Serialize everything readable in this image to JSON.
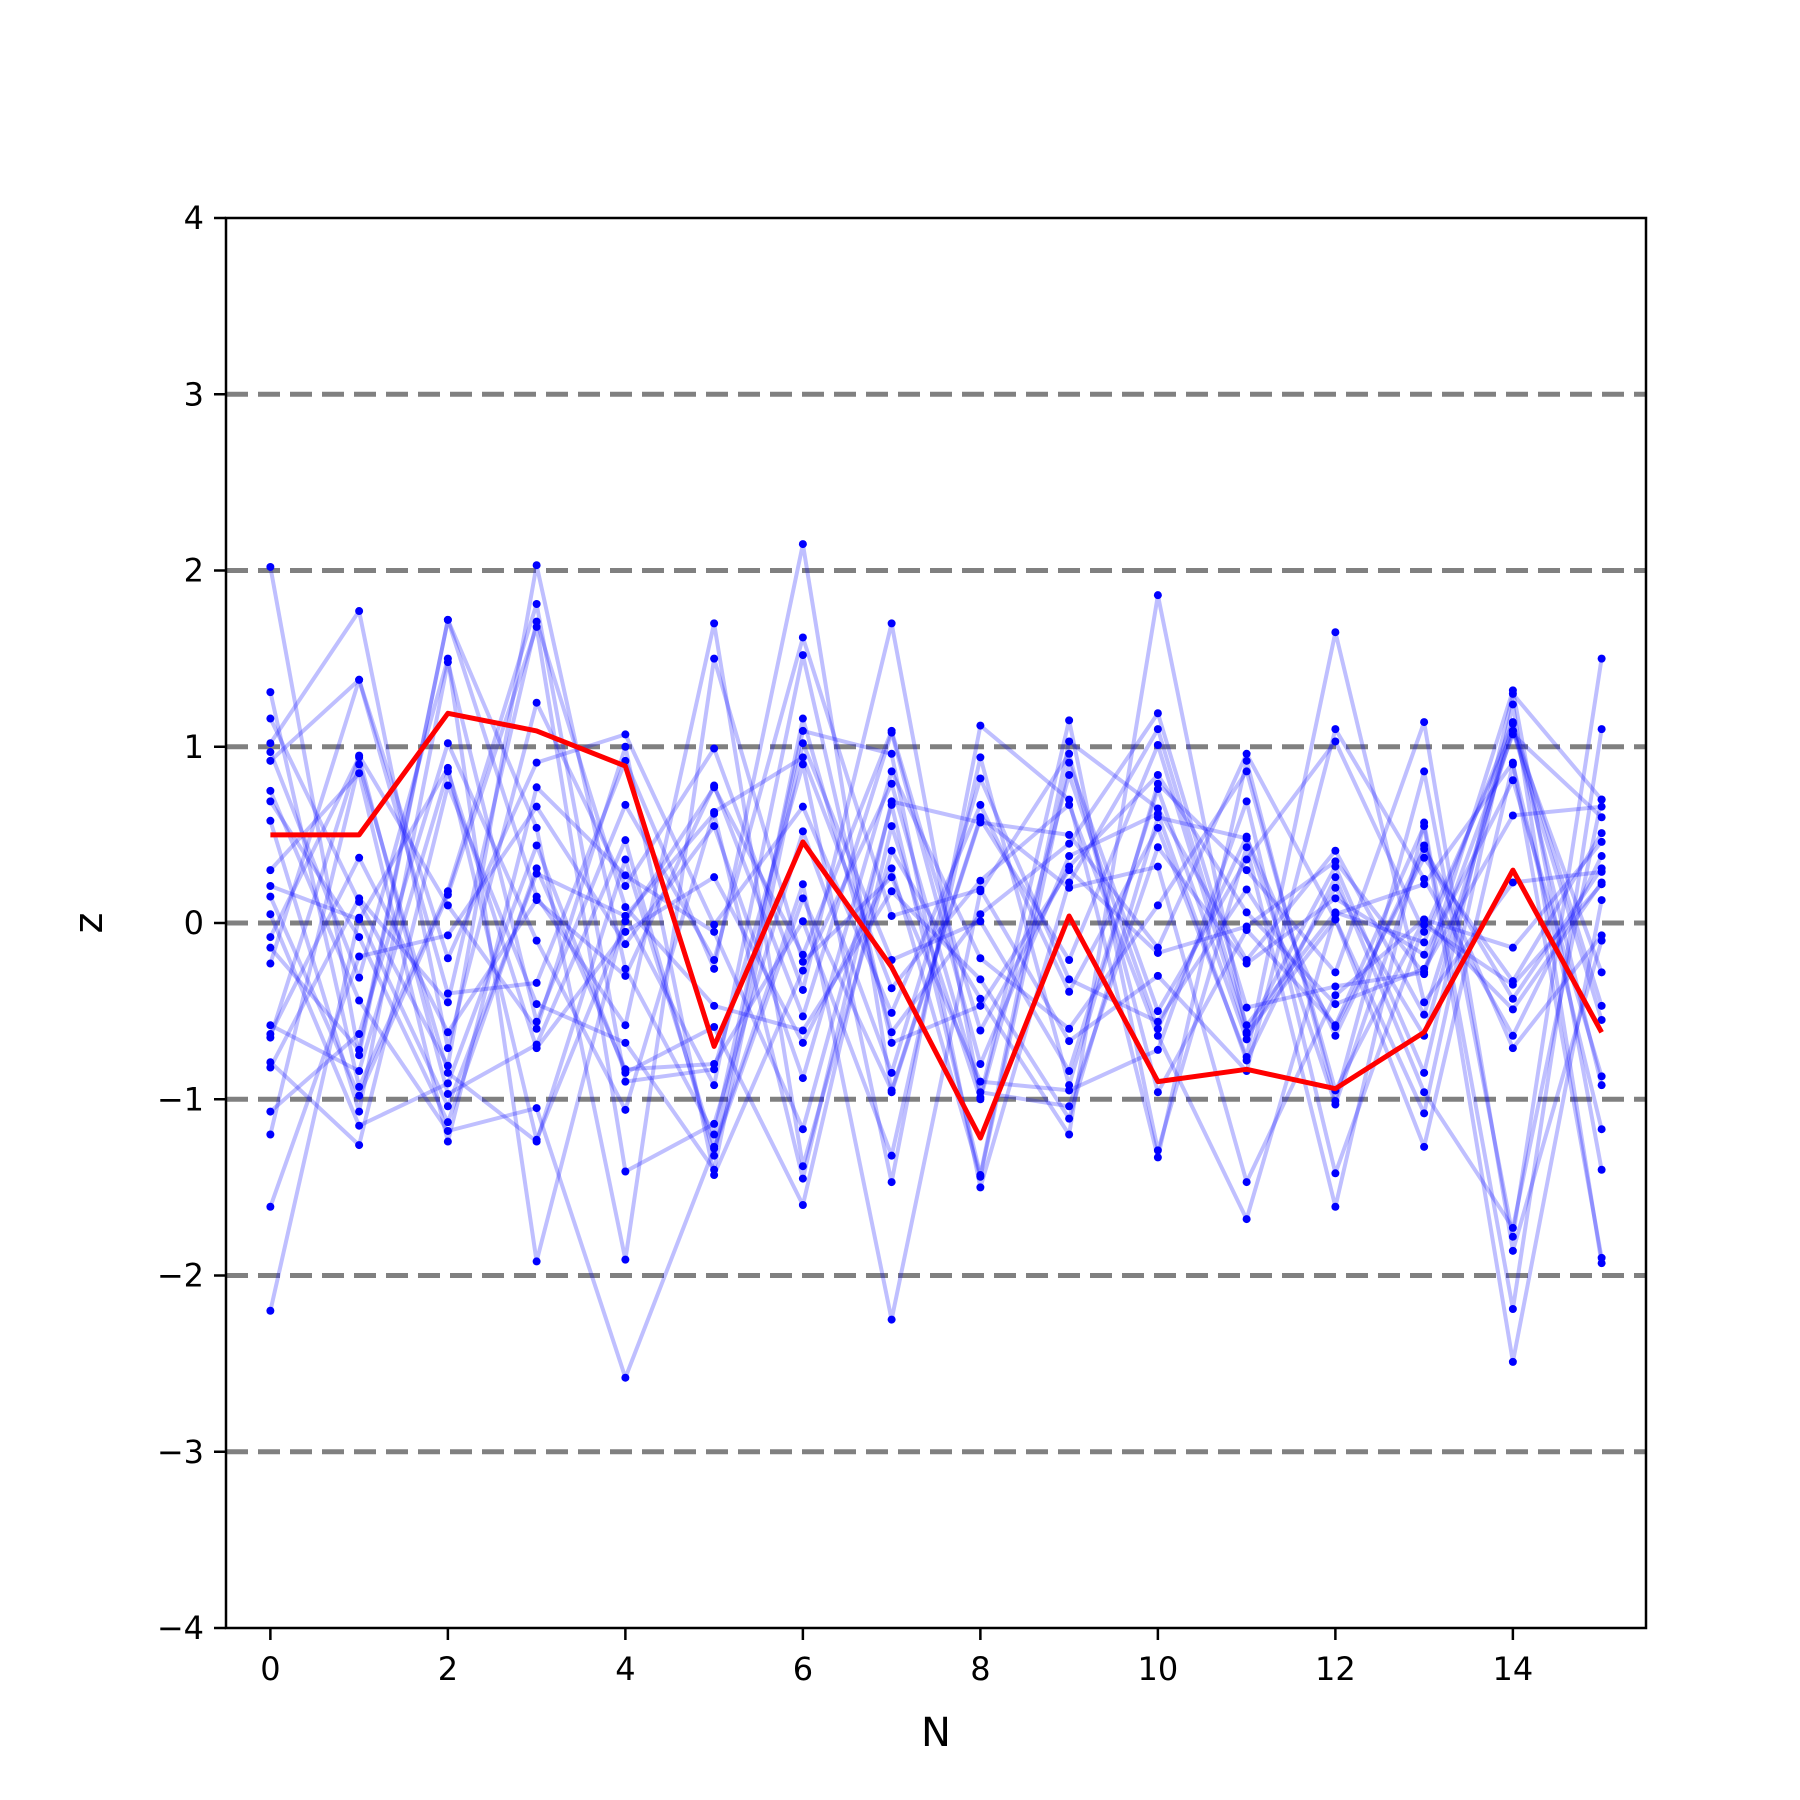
{
  "chart_data": {
    "type": "line",
    "xlabel": "N",
    "ylabel": "z",
    "xlim": [
      -0.5,
      15.5
    ],
    "ylim": [
      -4,
      4
    ],
    "x_ticks": [
      0,
      2,
      4,
      6,
      8,
      10,
      12,
      14
    ],
    "x_tick_labels": [
      "0",
      "2",
      "4",
      "6",
      "8",
      "10",
      "12",
      "14"
    ],
    "y_ticks": [
      -4,
      -3,
      -2,
      -1,
      0,
      1,
      2,
      3,
      4
    ],
    "y_tick_labels": [
      "−4",
      "−3",
      "−2",
      "−1",
      "0",
      "1",
      "2",
      "3",
      "4"
    ],
    "reference_lines": [
      -3,
      -2,
      -1,
      0,
      1,
      2,
      3
    ],
    "reference_line_color": "#808080",
    "trace_color": "#0000ff",
    "highlight_color": "#ff0000",
    "x": [
      0,
      1,
      2,
      3,
      4,
      5,
      6,
      7,
      8,
      9,
      10,
      11,
      12,
      13,
      14,
      15
    ],
    "highlight_series": {
      "values": [
        0.5,
        0.5,
        1.19,
        1.09,
        0.89,
        -0.7,
        0.46,
        -0.25,
        -1.22,
        0.04,
        -0.9,
        -0.83,
        -0.94,
        -0.62,
        0.3,
        -0.62
      ]
    },
    "traces": [
      [
        2.02,
        -0.75,
        1.72,
        0.15,
        -0.58,
        1.7,
        -1.38,
        0.41,
        -0.43,
        -1.2,
        1.86,
        -0.62,
        0.32,
        -0.85,
        1.3,
        0.7
      ],
      [
        1.31,
        -0.93,
        0.18,
        1.81,
        -0.9,
        -0.83,
        0.9,
        -1.47,
        1.12,
        0.7,
        -1.33,
        0.92,
        -1.01,
        0.86,
        -1.78,
        1.5
      ],
      [
        1.16,
        0.12,
        -0.81,
        2.03,
        -0.26,
        -1.2,
        1.09,
        0.96,
        -1.5,
        0.23,
        1.1,
        -0.58,
        0.06,
        -0.11,
        1.14,
        -0.47
      ],
      [
        1.02,
        1.77,
        -0.71,
        1.25,
        0.21,
        0.99,
        -0.38,
        1.7,
        -0.99,
        1.15,
        -1.29,
        0.43,
        -1.61,
        0.57,
        -2.19,
        1.1
      ],
      [
        0.97,
        -0.31,
        1.5,
        -1.92,
        0.04,
        0.62,
        -1.45,
        0.69,
        0.57,
        0.5,
        -0.14,
        0.96,
        0.02,
        -1.08,
        1.24,
        -1.93
      ],
      [
        0.92,
        1.38,
        -0.2,
        0.91,
        1.07,
        -0.01,
        0.66,
        -0.51,
        0.67,
        -0.39,
        0.54,
        -0.76,
        1.65,
        -0.45,
        0.23,
        0.29
      ],
      [
        0.69,
        -0.08,
        -1.13,
        0.31,
        -0.83,
        -0.8,
        0.01,
        -1.32,
        0.94,
        -0.92,
        0.79,
        0.3,
        -0.28,
        1.14,
        -1.86,
        -0.1
      ],
      [
        0.58,
        -1.07,
        1.48,
        -0.56,
        0.67,
        -0.21,
        1.62,
        0.04,
        0.19,
        -0.67,
        -0.3,
        -0.84,
        1.1,
        0.25,
        -0.64,
        0.38
      ],
      [
        0.3,
        0.85,
        -1.24,
        0.77,
        0.27,
        -0.05,
        -1.17,
        0.67,
        -1.43,
        1.03,
        0.65,
        -0.21,
        0.41,
        -0.52,
        1.09,
        -0.28
      ],
      [
        0.21,
        0.02,
        0.88,
        -1.23,
        0.01,
        0.77,
        -0.18,
        1.09,
        -0.61,
        0.32,
        0.84,
        0.06,
        -0.46,
        -0.26,
        0.61,
        0.66
      ],
      [
        0.15,
        -0.98,
        0.16,
        1.68,
        -1.41,
        -1.14,
        0.52,
        -0.85,
        0.82,
        -0.32,
        -0.56,
        0.19,
        -0.59,
        0.37,
        -0.33,
        0.51
      ],
      [
        -0.08,
        0.94,
        -0.97,
        -0.69,
        0.47,
        -1.32,
        1.16,
        -0.62,
        0.05,
        0.45,
        1.19,
        -0.48,
        -0.36,
        -0.28,
        1.32,
        -1.4
      ],
      [
        -0.14,
        -0.72,
        1.72,
        0.54,
        -1.91,
        1.5,
        -0.22,
        0.26,
        -0.9,
        -0.95,
        -0.72,
        0.69,
        -1.42,
        -0.01,
        -0.35,
        0.22
      ],
      [
        -0.23,
        1.38,
        -0.4,
        -0.34,
        0.92,
        -0.26,
        2.15,
        -0.96,
        0.59,
        -0.21,
        1.01,
        -0.63,
        0.02,
        -1.27,
        0.9,
        -1.17
      ],
      [
        -0.58,
        -0.84,
        0.86,
        -0.71,
        -0.05,
        0.26,
        -0.68,
        0.31,
        -1.44,
        0.91,
        -0.5,
        0.36,
        1.03,
        -0.05,
        1.09,
        -0.55
      ],
      [
        -0.63,
        0.37,
        -0.62,
        0.13,
        -0.3,
        0.78,
        -0.53,
        1.08,
        -0.8,
        0.38,
        0.62,
        -0.78,
        0.26,
        -0.96,
        -1.73,
        0.7
      ],
      [
        -0.79,
        -1.26,
        0.78,
        -0.46,
        -0.68,
        -1.4,
        1.02,
        -0.21,
        0.01,
        -0.84,
        0.76,
        -0.66,
        0.2,
        -0.64,
        1.13,
        -0.92
      ],
      [
        -0.82,
        0.14,
        -0.45,
        1.71,
        0.09,
        -0.47,
        -0.61,
        0.18,
        -0.32,
        -1.11,
        0.6,
        0.48,
        -0.64,
        0.42,
        -0.43,
        0.31
      ],
      [
        -1.07,
        -0.63,
        1.02,
        -0.1,
        -1.06,
        0.63,
        0.94,
        -0.37,
        0.24,
        0.67,
        -0.64,
        -1.68,
        0.05,
        0.22,
        0.91,
        -1.9
      ],
      [
        -1.2,
        0.9,
        -0.85,
        -1.24,
        0.36,
        -1.27,
        0.22,
        -2.25,
        0.18,
        0.96,
        -0.96,
        -0.04,
        -0.58,
        0.55,
        -2.49,
        0.13
      ],
      [
        -1.61,
        -0.19,
        -0.07,
        0.66,
        -0.12,
        0.55,
        -0.88,
        0.86,
        -0.2,
        -0.6,
        0.1,
        0.86,
        -0.95,
        0.02,
        -0.14,
        0.46
      ],
      [
        -2.2,
        0.03,
        -1.04,
        0.28,
        0.04,
        -0.92,
        1.52,
        -0.68,
        -0.47,
        0.3,
        -0.17,
        -0.02,
        0.35,
        -0.29,
        1.07,
        0.6
      ],
      [
        0.05,
        -1.15,
        -0.91,
        0.44,
        -0.85,
        -0.59,
        -1.6,
        0.55,
        -1.0,
        0.84,
        -0.6,
        0.49,
        -1.03,
        0.44,
        -0.71,
        -0.07
      ],
      [
        -0.65,
        0.95,
        0.1,
        -0.6,
        1.0,
        -1.43,
        -0.27,
        0.79,
        -0.96,
        -1.04,
        0.43,
        -0.23,
        0.14,
        -0.18,
        0.81,
        -0.87
      ],
      [
        0.75,
        -0.44,
        -1.18,
        -1.05,
        -2.58,
        -1.28,
        0.14,
        -0.95,
        0.6,
        0.2,
        0.32,
        -1.47,
        -0.41,
        0.02,
        -0.49,
        0.23
      ]
    ]
  }
}
